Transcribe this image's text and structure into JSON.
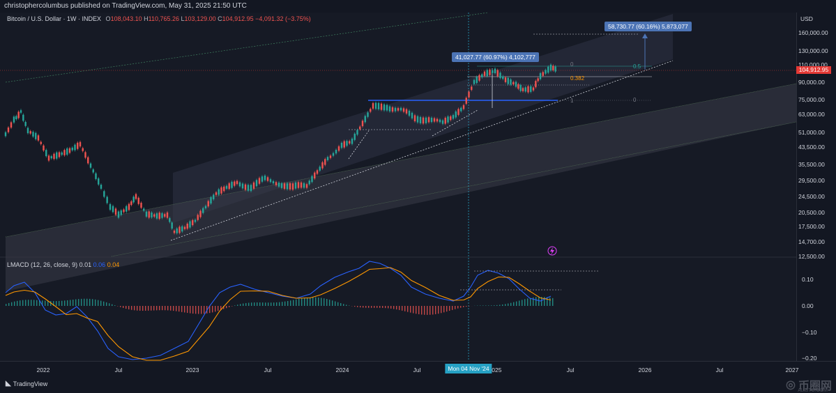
{
  "topbar": {
    "text": "christophercolumbus published on TradingView.com, May 31, 2025 21:50 UTC"
  },
  "header": {
    "symbol": "Bitcoin / U.S. Dollar · 1W · INDEX",
    "o_label": "O",
    "o": "108,043.10",
    "h_label": "H",
    "h": "110,765.26",
    "l_label": "L",
    "l": "103,129.00",
    "c_label": "C",
    "c": "104,912.95",
    "change": "−4,091.32 (−3.75%)"
  },
  "axis": {
    "currency": "USD",
    "price_ticks": [
      "160,000.00",
      "130,000.00",
      "110,000.00",
      "90,000.00",
      "75,000.00",
      "63,000.00",
      "51,000.00",
      "43,500.00",
      "35,500.00",
      "29,500.00",
      "24,500.00",
      "20,500.00",
      "17,500.00",
      "14,700.00",
      "12,500.00"
    ],
    "current_price": "104,912.95",
    "macd_ticks": [
      "0.10",
      "0.00",
      "−0.10",
      "−0.20"
    ]
  },
  "time_axis": {
    "labels": [
      "2022",
      "Jul",
      "2023",
      "Jul",
      "2024",
      "Jul",
      "2025",
      "Jul",
      "2026",
      "Jul",
      "2027"
    ],
    "cursor_label": "Mon 04 Nov '24"
  },
  "annotations": {
    "range_top": "58,730.77 (60.16%) 5,873,077",
    "range_mid": "41,027.77 (60.97%) 4,102,777",
    "fib_0_top": "0",
    "fib_05": "0.5",
    "fib_0382": "0.382",
    "fib_1": "1",
    "fib_0_right": "0"
  },
  "macd": {
    "name": "LMACD",
    "params": "(12, 26, close, 9)",
    "v1": "0.01",
    "v2": "0.06",
    "v3": "0.04"
  },
  "footer": {
    "brand": "TradingView",
    "watermark": "币圈网",
    "watermark_sub": "ALIBTC.COM"
  },
  "colors": {
    "bg": "#161a25",
    "up": "#26a69a",
    "down": "#ef5350",
    "macd_line": "#2962ff",
    "signal_line": "#ff9800",
    "price_tag": "#e53935",
    "annotation": "#4c74b5"
  }
}
